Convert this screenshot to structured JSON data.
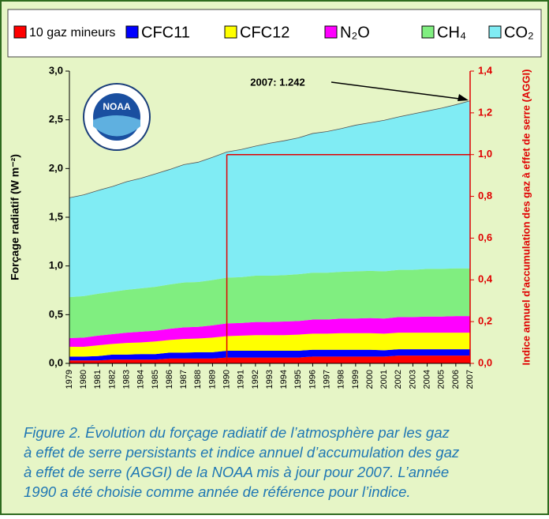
{
  "chart_data": {
    "type": "stacked_area",
    "x": [
      1979,
      1980,
      1981,
      1982,
      1983,
      1984,
      1985,
      1986,
      1987,
      1988,
      1989,
      1990,
      1991,
      1992,
      1993,
      1994,
      1995,
      1996,
      1997,
      1998,
      1999,
      2000,
      2001,
      2002,
      2003,
      2004,
      2005,
      2006,
      2007
    ],
    "xlim": [
      1979,
      2007
    ],
    "series": [
      {
        "name": "10 gaz mineurs",
        "color": "#ff0000",
        "values": [
          0.03,
          0.03,
          0.03,
          0.04,
          0.04,
          0.04,
          0.04,
          0.05,
          0.05,
          0.05,
          0.05,
          0.06,
          0.06,
          0.06,
          0.06,
          0.06,
          0.06,
          0.07,
          0.07,
          0.07,
          0.07,
          0.07,
          0.07,
          0.08,
          0.08,
          0.08,
          0.08,
          0.08,
          0.08
        ]
      },
      {
        "name": "CFC11",
        "color": "#0000ff",
        "values": [
          0.04,
          0.04,
          0.045,
          0.05,
          0.05,
          0.055,
          0.055,
          0.06,
          0.06,
          0.065,
          0.065,
          0.07,
          0.07,
          0.07,
          0.07,
          0.07,
          0.07,
          0.07,
          0.07,
          0.07,
          0.07,
          0.07,
          0.065,
          0.065,
          0.065,
          0.065,
          0.065,
          0.065,
          0.065
        ]
      },
      {
        "name": "CFC12",
        "color": "#ffff00",
        "values": [
          0.1,
          0.1,
          0.11,
          0.11,
          0.12,
          0.12,
          0.13,
          0.13,
          0.14,
          0.14,
          0.15,
          0.15,
          0.155,
          0.16,
          0.16,
          0.16,
          0.165,
          0.165,
          0.165,
          0.17,
          0.17,
          0.17,
          0.17,
          0.17,
          0.17,
          0.17,
          0.17,
          0.17,
          0.17
        ]
      },
      {
        "name": "N₂O",
        "color": "#ff00ff",
        "values": [
          0.09,
          0.095,
          0.1,
          0.1,
          0.105,
          0.11,
          0.11,
          0.115,
          0.12,
          0.12,
          0.125,
          0.13,
          0.13,
          0.135,
          0.135,
          0.14,
          0.14,
          0.145,
          0.145,
          0.15,
          0.15,
          0.155,
          0.155,
          0.16,
          0.16,
          0.165,
          0.165,
          0.17,
          0.17
        ]
      },
      {
        "name": "CH₄",
        "color": "#80ee80",
        "values": [
          0.42,
          0.425,
          0.43,
          0.435,
          0.44,
          0.445,
          0.45,
          0.455,
          0.46,
          0.46,
          0.465,
          0.47,
          0.47,
          0.475,
          0.475,
          0.475,
          0.48,
          0.48,
          0.48,
          0.48,
          0.485,
          0.485,
          0.485,
          0.485,
          0.485,
          0.49,
          0.49,
          0.49,
          0.49
        ]
      },
      {
        "name": "CO₂",
        "color": "#80ecf4",
        "values": [
          1.02,
          1.04,
          1.06,
          1.08,
          1.11,
          1.13,
          1.16,
          1.18,
          1.21,
          1.23,
          1.26,
          1.29,
          1.31,
          1.33,
          1.36,
          1.38,
          1.4,
          1.43,
          1.45,
          1.47,
          1.5,
          1.52,
          1.55,
          1.57,
          1.6,
          1.62,
          1.65,
          1.68,
          1.72
        ]
      }
    ],
    "ylim": [
      0,
      3
    ],
    "yticks": [
      {
        "value": 0,
        "label": "0,0"
      },
      {
        "value": 0.5,
        "label": "0,5"
      },
      {
        "value": 1,
        "label": "1,0"
      },
      {
        "value": 1.5,
        "label": "1,5"
      },
      {
        "value": 2,
        "label": "2,0"
      },
      {
        "value": 2.5,
        "label": "2,5"
      },
      {
        "value": 3,
        "label": "3,0"
      }
    ],
    "y2lim": [
      0,
      1.4
    ],
    "y2ticks": [
      {
        "value": 0,
        "label": "0,0"
      },
      {
        "value": 0.2,
        "label": "0,2"
      },
      {
        "value": 0.4,
        "label": "0,4"
      },
      {
        "value": 0.6,
        "label": "0,6"
      },
      {
        "value": 0.8,
        "label": "0,8"
      },
      {
        "value": 1,
        "label": "1,0"
      },
      {
        "value": 1.2,
        "label": "1,2"
      },
      {
        "value": 1.4,
        "label": "1,4"
      }
    ],
    "y_label": "Forçage radiatif (W m⁻²)",
    "y2_label": "Indice annuel d’accumulation des gaz à effet de serre (AGGI)",
    "reference_year": 1990,
    "reference_index": 1,
    "annotation": "2007: 1.242",
    "logo_text": "NOAA",
    "caption": [
      "Figure 2. Évolution du forçage radiatif de l’atmosphère par les gaz",
      "à effet de serre persistants et indice annuel d’accumulation des gaz",
      "à effet de serre (AGGI) de la NOAA mis à jour pour 2007. L’année",
      "1990 a été choisie comme année de référence pour l’indice."
    ]
  }
}
